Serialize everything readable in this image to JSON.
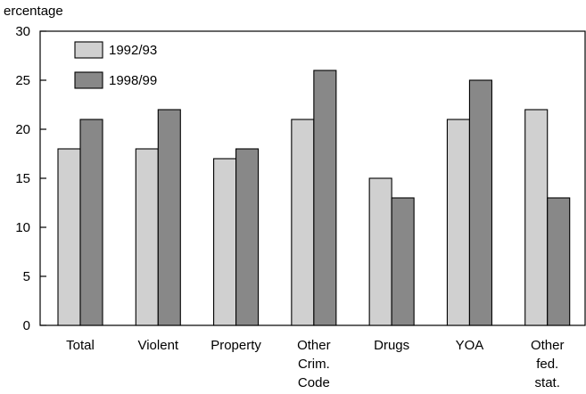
{
  "chart_data": {
    "type": "bar",
    "ylabel": "ercentage",
    "ylim": [
      0,
      30
    ],
    "yticks": [
      0,
      5,
      10,
      15,
      20,
      25,
      30
    ],
    "categories": [
      [
        "Total"
      ],
      [
        "Violent"
      ],
      [
        "Property"
      ],
      [
        "Other",
        "Crim.",
        "Code"
      ],
      [
        "Drugs"
      ],
      [
        "YOA"
      ],
      [
        "Other",
        "fed.",
        "stat."
      ]
    ],
    "series": [
      {
        "name": "1992/93",
        "color": "#d0d0d0",
        "values": [
          18,
          18,
          17,
          21,
          15,
          21,
          22
        ]
      },
      {
        "name": "1998/99",
        "color": "#888888",
        "values": [
          21,
          22,
          18,
          26,
          13,
          25,
          13
        ]
      }
    ],
    "grid": false,
    "legend": "top-left"
  }
}
